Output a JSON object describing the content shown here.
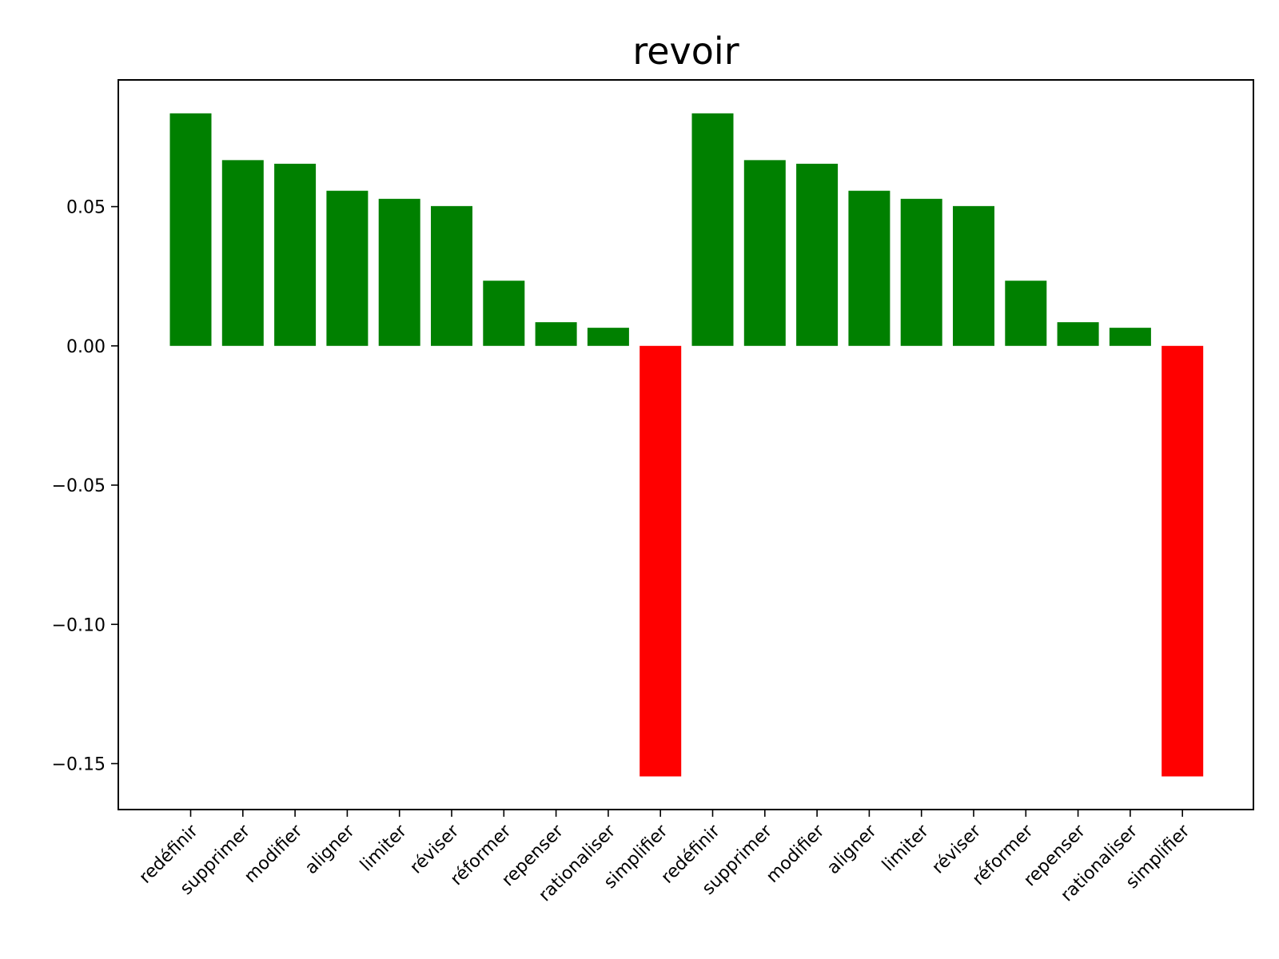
{
  "chart_data": {
    "type": "bar",
    "title": "revoir",
    "xlabel": "",
    "ylabel": "",
    "categories": [
      "redéfinir",
      "supprimer",
      "modifier",
      "aligner",
      "limiter",
      "réviser",
      "réformer",
      "repenser",
      "rationaliser",
      "simplifier",
      "redéfinir",
      "supprimer",
      "modifier",
      "aligner",
      "limiter",
      "réviser",
      "réformer",
      "repenser",
      "rationaliser",
      "simplifier"
    ],
    "values": [
      0.0835,
      0.0667,
      0.0654,
      0.0557,
      0.0528,
      0.0502,
      0.0234,
      0.0085,
      0.0065,
      -0.1546,
      0.0835,
      0.0667,
      0.0654,
      0.0557,
      0.0528,
      0.0502,
      0.0234,
      0.0085,
      0.0065,
      -0.1546
    ],
    "ylim": [
      -0.1665,
      0.0955
    ],
    "yticks": [
      0.05,
      0.0,
      -0.05,
      -0.1,
      -0.15
    ],
    "ytick_labels": [
      "0.05",
      "0.00",
      "−0.05",
      "−0.10",
      "−0.15"
    ],
    "grid": false,
    "legend": "none",
    "colors": {
      "positive": "#008000",
      "negative": "#ff0000",
      "axis": "#000000",
      "background": "#ffffff"
    }
  }
}
